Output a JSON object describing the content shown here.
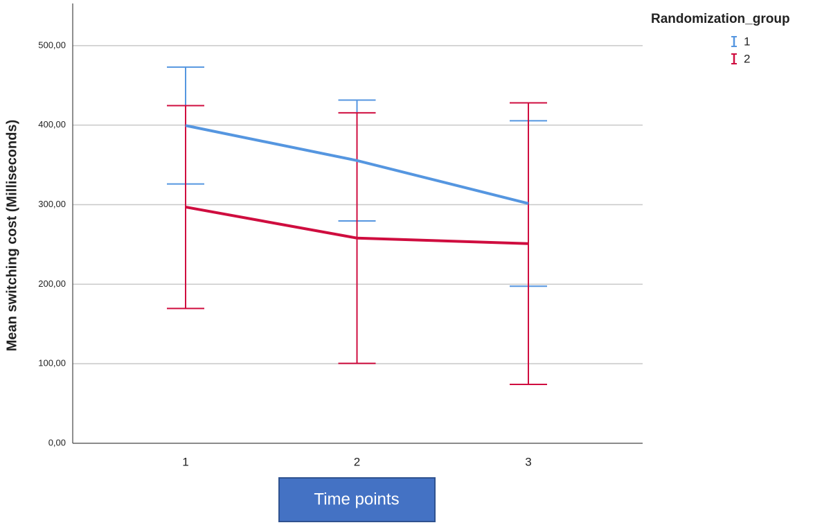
{
  "chart_data": {
    "type": "line",
    "y_label": "Mean switching cost (Milliseconds)",
    "x_label": "Time points",
    "legend_title": "Randomization_group",
    "legend_position": "top-right",
    "grid": true,
    "categories": [
      "1",
      "2",
      "3"
    ],
    "ylim": [
      0,
      553
    ],
    "yticks": [
      {
        "value": 0,
        "label": "0,00"
      },
      {
        "value": 100,
        "label": "100,00"
      },
      {
        "value": 200,
        "label": "200,00"
      },
      {
        "value": 300,
        "label": "300,00"
      },
      {
        "value": 400,
        "label": "400,00"
      },
      {
        "value": 500,
        "label": "500,00"
      }
    ],
    "series": [
      {
        "name": "1",
        "color": "#5596e0",
        "values": [
          399.5,
          355.5,
          301.5
        ],
        "errors": [
          73.5,
          76,
          104
        ]
      },
      {
        "name": "2",
        "color": "#cf0d3f",
        "values": [
          297,
          258,
          251
        ],
        "errors": [
          127.5,
          157.5,
          177
        ]
      }
    ]
  }
}
